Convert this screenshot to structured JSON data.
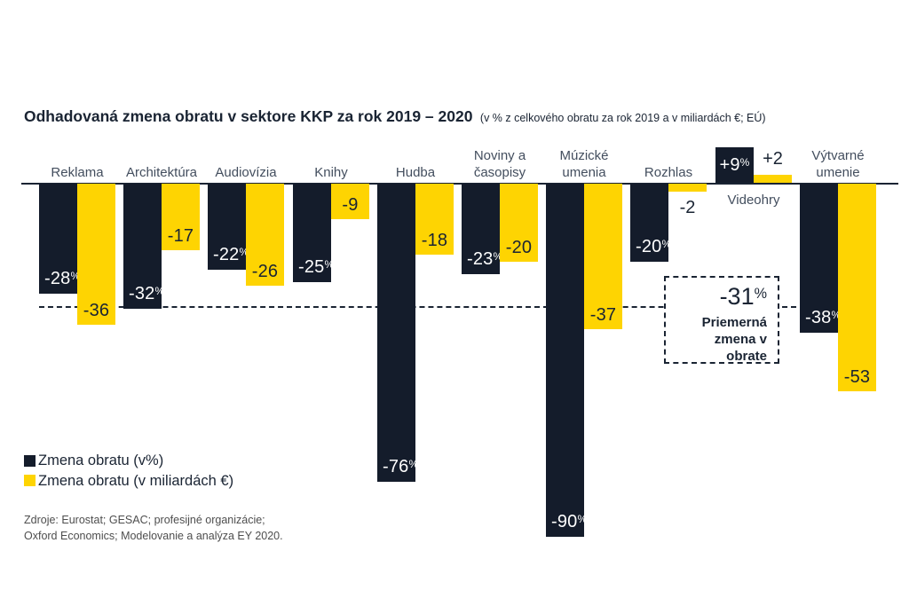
{
  "header": {
    "title": "Odhadovaná zmena obratu v sektore KKP za rok 2019 – 2020",
    "subtitle": "(v % z celkového obratu za rok 2019 a v miliardách €; EÚ)"
  },
  "legend": [
    {
      "label": "Zmena obratu (v%)",
      "color": "#141c2b"
    },
    {
      "label": "Zmena obratu (v miliardách €)",
      "color": "#fed402"
    }
  ],
  "sources": {
    "line1": "Zdroje: Eurostat; GESAC; profesijné organizácie;",
    "line2": "Oxford Economics; Modelovanie a analýza EY 2020."
  },
  "colors": {
    "dark_navy": "#141c2b",
    "yellow": "#fed402",
    "text": "#1a2433",
    "muted_text": "#4e4e4e"
  },
  "chart_data": {
    "type": "bar",
    "title": "Odhadovaná zmena obratu v sektore KKP za rok 2019 – 2020",
    "subtitle": "(v % z celkového obratu za rok 2019 a v miliardách €; EÚ)",
    "grid": false,
    "legend_position": "bottom-left",
    "categories": [
      "Reklama",
      "Architektúra",
      "Audiovízia",
      "Knihy",
      "Hudba",
      "Noviny a\nčasopisy",
      "Múzické\numenia",
      "Rozhlas",
      "Videohry",
      "Výtvarné\numenie"
    ],
    "series": [
      {
        "name": "Zmena obratu (v%)",
        "unit": "%",
        "color": "#141c2b",
        "label_color": "#ffffff",
        "values": [
          -28,
          -32,
          -22,
          -25,
          -76,
          -23,
          -90,
          -20,
          9,
          -38
        ]
      },
      {
        "name": "Zmena obratu (v miliardách €)",
        "unit": "",
        "color": "#fed402",
        "label_color": "#1a2433",
        "values": [
          -36,
          -17,
          -26,
          -9,
          -18,
          -20,
          -37,
          -2,
          2,
          -53
        ]
      }
    ],
    "average": {
      "value": -31,
      "display": "-31",
      "unit": "%",
      "caption_line1": "Priemerná",
      "caption_line2": "zmena v obrate"
    },
    "ylim": [
      -95,
      12
    ]
  }
}
